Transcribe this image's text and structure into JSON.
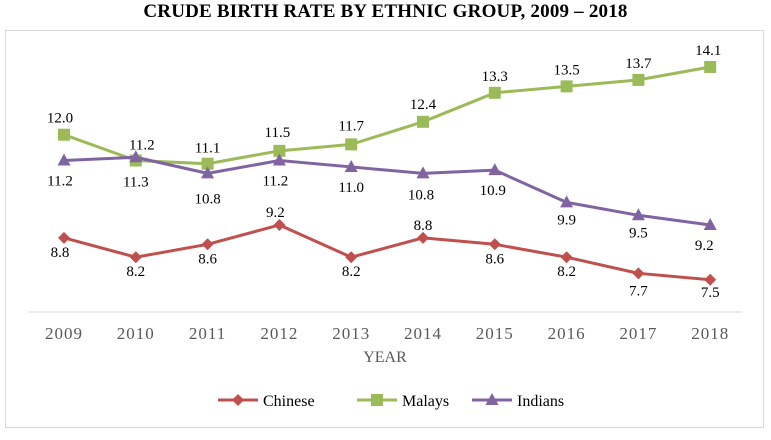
{
  "chart_data": {
    "type": "line",
    "title": "CRUDE BIRTH RATE BY ETHNIC GROUP, 2009 – 2018",
    "xlabel": "YEAR",
    "ylabel": "",
    "categories": [
      "2009",
      "2010",
      "2011",
      "2012",
      "2013",
      "2014",
      "2015",
      "2016",
      "2017",
      "2018"
    ],
    "ylim": [
      6.5,
      15
    ],
    "grid": false,
    "legend": "bottom",
    "series": [
      {
        "name": "Chinese",
        "color": "#c0504d",
        "marker": "diamond",
        "values": [
          8.8,
          8.2,
          8.6,
          9.2,
          8.2,
          8.8,
          8.6,
          8.2,
          7.7,
          7.5
        ],
        "labels": [
          "8.8",
          "8.2",
          "8.6",
          "9.2",
          "8.2",
          "8.8",
          "8.6",
          "8.2",
          "7.7",
          "7.5"
        ]
      },
      {
        "name": "Malays",
        "color": "#9bbb59",
        "marker": "square",
        "values": [
          12.0,
          11.2,
          11.1,
          11.5,
          11.7,
          12.4,
          13.3,
          13.5,
          13.7,
          14.1
        ],
        "labels": [
          "12.0",
          "11.2",
          "11.1",
          "11.5",
          "11.7",
          "12.4",
          "13.3",
          "13.5",
          "13.7",
          "14.1"
        ]
      },
      {
        "name": "Indians",
        "color": "#8064a2",
        "marker": "triangle",
        "values": [
          11.2,
          11.3,
          10.8,
          11.2,
          11.0,
          10.8,
          10.9,
          9.9,
          9.5,
          9.2
        ],
        "labels": [
          "11.2",
          "11.3",
          "10.8",
          "11.2",
          "11.0",
          "10.8",
          "10.9",
          "9.9",
          "9.5",
          "9.2"
        ]
      }
    ]
  }
}
